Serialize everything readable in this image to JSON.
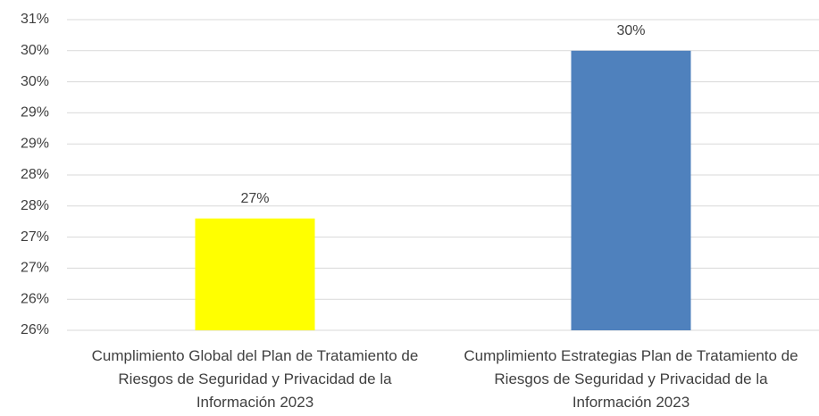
{
  "chart_data": {
    "type": "bar",
    "categories": [
      "Cumplimiento Global del  Plan de Tratamiento de Riesgos de Seguridad y Privacidad de la Información 2023",
      "Cumplimiento Estrategias  Plan de Tratamiento de Riesgos de Seguridad y Privacidad de la Información 2023"
    ],
    "values": [
      27.3,
      30
    ],
    "value_labels": [
      "27%",
      "30%"
    ],
    "colors": [
      "#ffff00",
      "#4f81bd"
    ],
    "ylim": [
      25.5,
      30.5
    ],
    "yticks": [
      {
        "value": 25.5,
        "label": "26%"
      },
      {
        "value": 26,
        "label": "26%"
      },
      {
        "value": 26.5,
        "label": "27%"
      },
      {
        "value": 27,
        "label": "27%"
      },
      {
        "value": 27.5,
        "label": "28%"
      },
      {
        "value": 28,
        "label": "28%"
      },
      {
        "value": 28.5,
        "label": "29%"
      },
      {
        "value": 29,
        "label": "29%"
      },
      {
        "value": 29.5,
        "label": "30%"
      },
      {
        "value": 30,
        "label": "30%"
      },
      {
        "value": 30.5,
        "label": "31%"
      }
    ],
    "grid": true
  }
}
